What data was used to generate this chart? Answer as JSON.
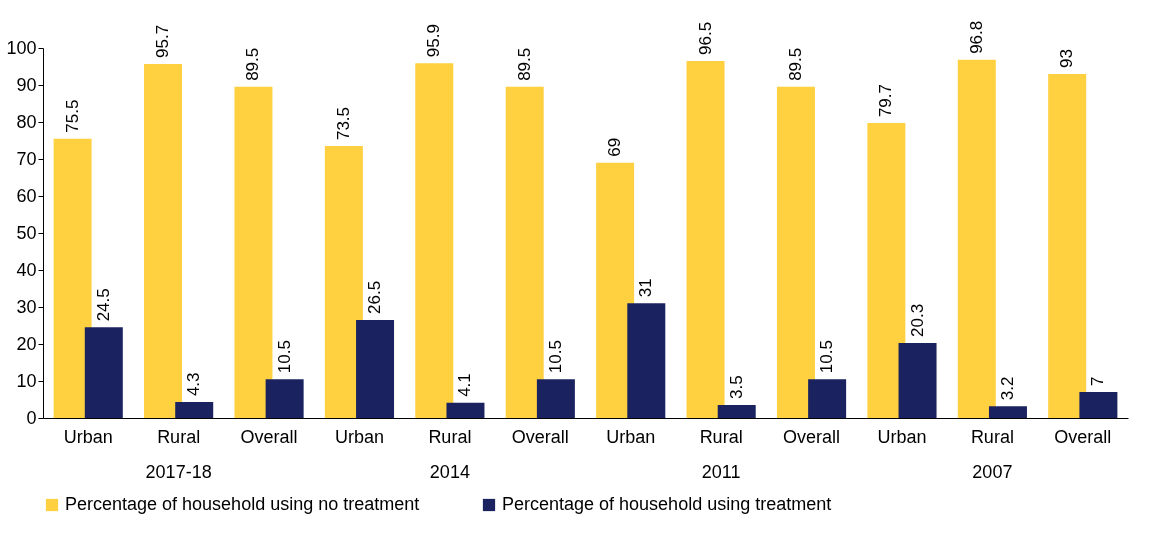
{
  "chart_data": {
    "type": "bar",
    "categories": [
      "Urban",
      "Rural",
      "Overall",
      "Urban",
      "Rural",
      "Overall",
      "Urban",
      "Rural",
      "Overall",
      "Urban",
      "Rural",
      "Overall"
    ],
    "series": [
      {
        "name": "Percentage of household using no treatment",
        "color": "#ffd040",
        "values": [
          75.5,
          95.7,
          89.5,
          73.5,
          95.9,
          89.5,
          69,
          96.5,
          89.5,
          79.7,
          96.8,
          93
        ]
      },
      {
        "name": "Percentage of household using treatment",
        "color": "#1a2360",
        "values": [
          24.5,
          4.3,
          10.5,
          26.5,
          4.1,
          10.5,
          31,
          3.5,
          10.5,
          20.3,
          3.2,
          7
        ]
      }
    ],
    "annotations": [
      "2017-18",
      "2014",
      "2011",
      "2007"
    ],
    "ylim": [
      0,
      100
    ],
    "yticks": [
      0,
      10,
      20,
      30,
      40,
      50,
      60,
      70,
      80,
      90,
      100
    ],
    "data_labels": true,
    "grid": false,
    "legend": "bottom"
  }
}
